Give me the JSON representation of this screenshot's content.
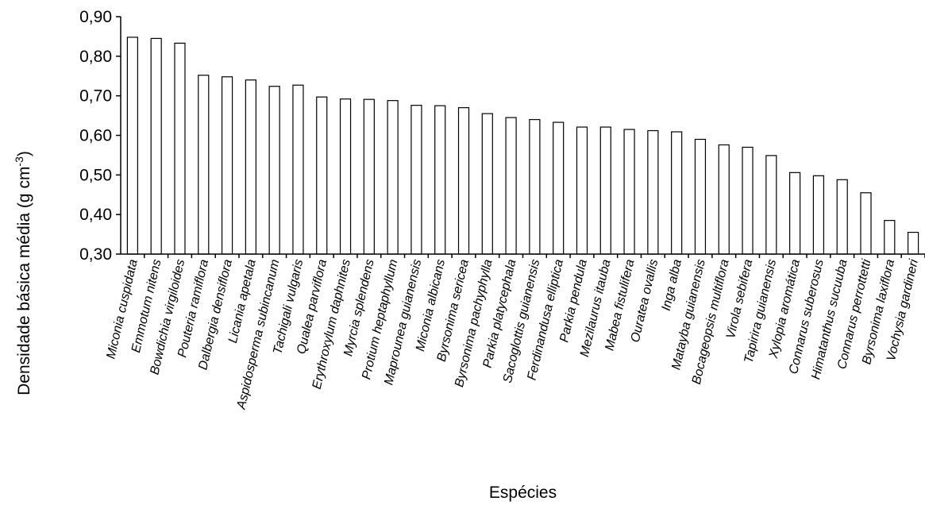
{
  "chart_data": {
    "type": "bar",
    "title": "",
    "xlabel": "Espécies",
    "ylabel": "Densidade básica média (g cm-3)",
    "ylabel_parts": {
      "main": "Densidade básica média (g cm",
      "sup": "-3",
      "end": ")"
    },
    "ylim": [
      0.3,
      0.9
    ],
    "yticks": [
      "0,30",
      "0,40",
      "0,50",
      "0,60",
      "0,70",
      "0,80",
      "0,90"
    ],
    "grid": false,
    "categories": [
      "Miconia cuspidata",
      "Emmotum nitens",
      "Bowdichia virgiloides",
      "Pouteria ramiflora",
      "Dalbergia densiflora",
      "Licania apetala",
      "Aspidosperma subincanum",
      "Tachigali vulgaris",
      "Qualea parviflora",
      "Erythroxylum daphnites",
      "Myrcia splendens",
      "Protium heptaphyllum",
      "Maprounea guianensis",
      "Miconia albicans",
      "Byrsonima sericea",
      "Byrsonima pachyphylla",
      "Parkia platycephala",
      "Sacoglottis guianensis",
      "Ferdinandusa elliptica",
      "Parkia pendula",
      "Mezilaurus itauba",
      "Mabea fistulifera",
      "Ouratea ovallis",
      "Inga alba",
      "Matayba guianensis",
      "Bocageopsis multiflora",
      "Virola sebifera",
      "Tapirira guianensis",
      "Xylopia aromática",
      "Connarus suberosus",
      "Himatanthus sucuuba",
      "Connarus perrottetti",
      "Byrsonima laxiflora",
      "Vochysia gardineri"
    ],
    "values": [
      0.848,
      0.845,
      0.833,
      0.752,
      0.748,
      0.74,
      0.724,
      0.727,
      0.697,
      0.692,
      0.691,
      0.688,
      0.676,
      0.675,
      0.67,
      0.655,
      0.645,
      0.64,
      0.633,
      0.621,
      0.621,
      0.615,
      0.612,
      0.609,
      0.59,
      0.576,
      0.57,
      0.549,
      0.506,
      0.498,
      0.488,
      0.455,
      0.385,
      0.355
    ]
  }
}
